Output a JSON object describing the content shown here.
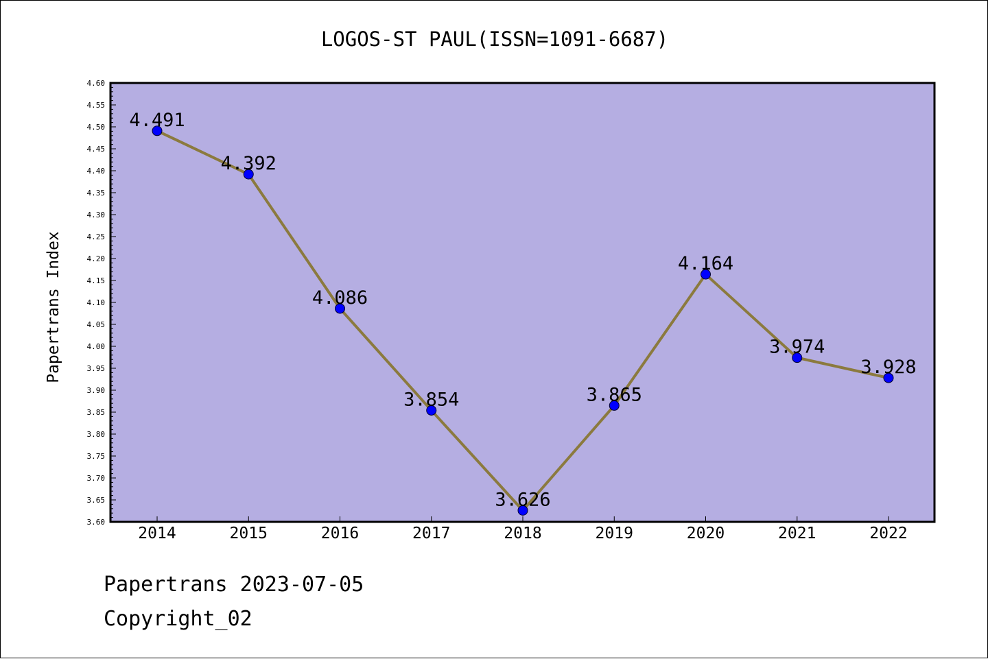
{
  "chart_data": {
    "type": "line",
    "title": "LOGOS-ST PAUL(ISSN=1091-6687)",
    "xlabel": "",
    "ylabel": "Papertrans Index",
    "categories": [
      "2014",
      "2015",
      "2016",
      "2017",
      "2018",
      "2019",
      "2020",
      "2021",
      "2022"
    ],
    "series": [
      {
        "values": [
          4.491,
          4.392,
          4.086,
          3.854,
          3.626,
          3.865,
          4.164,
          3.974,
          3.928
        ],
        "labels": [
          "4.491",
          "4.392",
          "4.086",
          "3.854",
          "3.626",
          "3.865",
          "4.164",
          "3.974",
          "3.928"
        ]
      }
    ],
    "ylim": [
      3.6,
      4.6
    ],
    "yticks": [
      "3.60",
      "3.65",
      "3.70",
      "3.75",
      "3.80",
      "3.85",
      "3.90",
      "3.95",
      "4.00",
      "4.05",
      "4.10",
      "4.15",
      "4.20",
      "4.25",
      "4.30",
      "4.35",
      "4.40",
      "4.45",
      "4.50",
      "4.55",
      "4.60"
    ],
    "grid": false,
    "legend": "none",
    "colors": {
      "plot_background": "#b5aee2",
      "line": "#8b7a3e",
      "marker": "#0000ff"
    }
  },
  "footer": {
    "line1": "Papertrans 2023-07-05",
    "line2": "Copyright_02"
  }
}
